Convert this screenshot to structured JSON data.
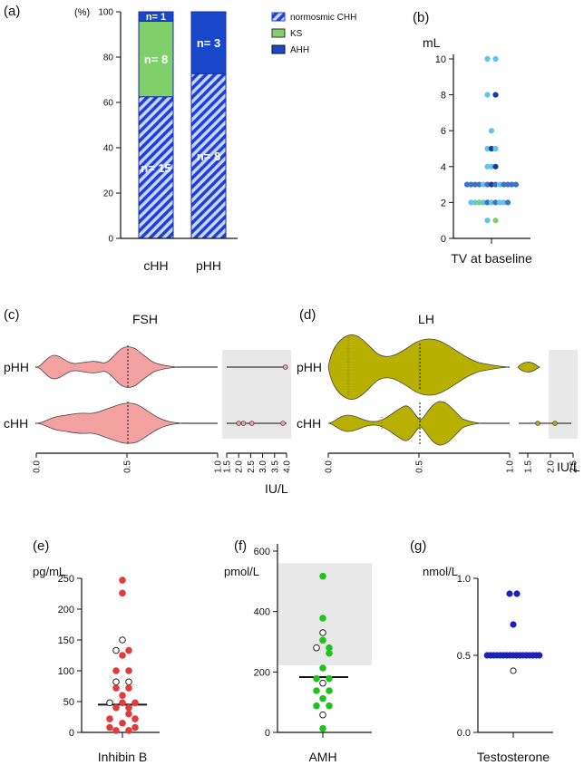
{
  "colors": {
    "normosmic": "#1f3fd6",
    "ks": "#7fd06a",
    "ahh": "#1947c9",
    "fsh": "#f4a1a1",
    "lh": "#b7b000",
    "shade": "#e8e8e8"
  },
  "panels": [
    {
      "label": "(a)"
    },
    {
      "label": "(b)"
    },
    {
      "label": "(c)"
    },
    {
      "label": "(d)"
    },
    {
      "label": "(e)"
    },
    {
      "label": "(f)"
    },
    {
      "label": "(g)"
    }
  ],
  "chart_data": [
    {
      "id": "a",
      "type": "bar",
      "stacked": true,
      "ylabel": "(%)",
      "ylim": [
        0,
        100
      ],
      "yticks": [
        0,
        20,
        40,
        60,
        80,
        100
      ],
      "categories": [
        "cHH",
        "pHH"
      ],
      "series": [
        {
          "name": "normosmic CHH",
          "values": [
            62.5,
            72.7
          ],
          "counts": [
            "n= 15",
            "n= 8"
          ]
        },
        {
          "name": "KS",
          "values": [
            33.3,
            0
          ],
          "counts": [
            "n= 8",
            ""
          ]
        },
        {
          "name": "AHH",
          "values": [
            4.2,
            27.3
          ],
          "counts": [
            "n= 1",
            "n= 3"
          ]
        }
      ],
      "legend": [
        "normosmic CHH",
        "KS",
        "AHH"
      ]
    },
    {
      "id": "b",
      "type": "scatter",
      "ylabel": "mL",
      "xlabel": "TV at baseline",
      "ylim": [
        0,
        10
      ],
      "yticks": [
        0,
        2,
        4,
        6,
        8,
        10
      ],
      "points": [
        {
          "y": 10,
          "dx": -1,
          "c": "#5ec5ec"
        },
        {
          "y": 10,
          "dx": 1,
          "c": "#5ec5ec"
        },
        {
          "y": 8,
          "dx": -1,
          "c": "#5ec5ec"
        },
        {
          "y": 8,
          "dx": 1,
          "c": "#1a3a9e"
        },
        {
          "y": 6,
          "dx": 0,
          "c": "#5ec5ec"
        },
        {
          "y": 5,
          "dx": -1,
          "c": "#5ec5ec"
        },
        {
          "y": 5,
          "dx": 0,
          "c": "#1a3a9e"
        },
        {
          "y": 5,
          "dx": 1,
          "c": "#5ec5ec"
        },
        {
          "y": 4,
          "dx": -1,
          "c": "#5ec5ec"
        },
        {
          "y": 4,
          "dx": 0,
          "c": "#5ec5ec"
        },
        {
          "y": 4,
          "dx": 1,
          "c": "#1a3a9e"
        },
        {
          "y": 3,
          "dx": -6,
          "c": "#3a73cc"
        },
        {
          "y": 3,
          "dx": -5,
          "c": "#3a73cc"
        },
        {
          "y": 3,
          "dx": -4,
          "c": "#3a73cc"
        },
        {
          "y": 3,
          "dx": -3,
          "c": "#3a73cc"
        },
        {
          "y": 3,
          "dx": -2,
          "c": "#5ec5ec"
        },
        {
          "y": 3,
          "dx": -1,
          "c": "#3a73cc"
        },
        {
          "y": 3,
          "dx": 0,
          "c": "#1a3a9e"
        },
        {
          "y": 3,
          "dx": 1,
          "c": "#3a73cc"
        },
        {
          "y": 3,
          "dx": 2,
          "c": "#5ec5ec"
        },
        {
          "y": 3,
          "dx": 3,
          "c": "#3a73cc"
        },
        {
          "y": 3,
          "dx": 4,
          "c": "#3a73cc"
        },
        {
          "y": 3,
          "dx": 5,
          "c": "#3a73cc"
        },
        {
          "y": 3,
          "dx": 6,
          "c": "#3a73cc"
        },
        {
          "y": 2,
          "dx": -5,
          "c": "#5ec5ec"
        },
        {
          "y": 2,
          "dx": -4,
          "c": "#5ec5ec"
        },
        {
          "y": 2,
          "dx": -3,
          "c": "#7fd06a"
        },
        {
          "y": 2,
          "dx": -2,
          "c": "#5ec5ec"
        },
        {
          "y": 2,
          "dx": -1,
          "c": "#3a73cc"
        },
        {
          "y": 2,
          "dx": 0,
          "c": "#5ec5ec"
        },
        {
          "y": 2,
          "dx": 1,
          "c": "#3a73cc"
        },
        {
          "y": 2,
          "dx": 2,
          "c": "#5ec5ec"
        },
        {
          "y": 2,
          "dx": 3,
          "c": "#5ec5ec"
        },
        {
          "y": 2,
          "dx": 4,
          "c": "#3a73cc"
        },
        {
          "y": 1,
          "dx": -1,
          "c": "#5ec5ec"
        },
        {
          "y": 1,
          "dx": 1,
          "c": "#7fd06a"
        }
      ]
    },
    {
      "id": "c",
      "type": "violin",
      "title": "FSH",
      "unit": "IU/L",
      "categories": [
        "pHH",
        "cHH"
      ],
      "main_range": [
        0,
        1
      ],
      "main_ticks": [
        "0.0",
        "0.5",
        "1.0"
      ],
      "main_tick_values": [
        0,
        0.5,
        1
      ],
      "break_range": [
        1.5,
        4
      ],
      "break_ticks": [
        "1.5",
        "2.0",
        "2.5",
        "3.0",
        "3.5",
        "4.0"
      ],
      "break_tick_values": [
        1.5,
        2,
        2.5,
        3,
        3.5,
        4
      ],
      "median": 0.5,
      "outliers": {
        "pHH": [
          3.95
        ],
        "cHH": [
          2.0,
          2.2,
          2.55,
          3.85
        ]
      }
    },
    {
      "id": "d",
      "type": "violin",
      "title": "LH",
      "unit": "IU/L",
      "categories": [
        "pHH",
        "cHH"
      ],
      "main_range": [
        0,
        1
      ],
      "main_ticks": [
        "0.0",
        "0.5",
        "1.0"
      ],
      "main_tick_values": [
        0,
        0.5,
        1
      ],
      "break_range": [
        1.3,
        2.5
      ],
      "break_ticks": [
        "1.5",
        "2.0",
        "2.5"
      ],
      "break_tick_values": [
        1.5,
        2,
        2.5
      ],
      "median": 0.5,
      "outliers": {
        "pHH": [],
        "cHH": [
          1.72,
          2.1
        ]
      }
    },
    {
      "id": "e",
      "type": "scatter",
      "ylabel": "pg/mL",
      "xlabel": "Inhibin B",
      "ylim": [
        0,
        250
      ],
      "yticks": [
        0,
        50,
        100,
        150,
        200,
        250
      ],
      "median": 45,
      "filled_color": "#e03c3c",
      "points": [
        {
          "y": 247,
          "dx": 0,
          "f": 1
        },
        {
          "y": 226,
          "dx": 0,
          "f": 1
        },
        {
          "y": 150,
          "dx": 0,
          "f": 0
        },
        {
          "y": 133,
          "dx": -1,
          "f": 0
        },
        {
          "y": 133,
          "dx": 1,
          "f": 1
        },
        {
          "y": 125,
          "dx": 0,
          "f": 1
        },
        {
          "y": 100,
          "dx": -1,
          "f": 1
        },
        {
          "y": 100,
          "dx": 1,
          "f": 1
        },
        {
          "y": 82,
          "dx": -1,
          "f": 0
        },
        {
          "y": 82,
          "dx": 1,
          "f": 0
        },
        {
          "y": 72,
          "dx": -1,
          "f": 1
        },
        {
          "y": 72,
          "dx": 1,
          "f": 1
        },
        {
          "y": 60,
          "dx": 0,
          "f": 1
        },
        {
          "y": 48,
          "dx": -2,
          "f": 0
        },
        {
          "y": 48,
          "dx": 0,
          "f": 1
        },
        {
          "y": 48,
          "dx": 2,
          "f": 1
        },
        {
          "y": 40,
          "dx": -1,
          "f": 1
        },
        {
          "y": 40,
          "dx": 1,
          "f": 1
        },
        {
          "y": 30,
          "dx": 1,
          "f": 1
        },
        {
          "y": 22,
          "dx": -2,
          "f": 1
        },
        {
          "y": 22,
          "dx": 2,
          "f": 1
        },
        {
          "y": 15,
          "dx": 0,
          "f": 1
        },
        {
          "y": 8,
          "dx": -2,
          "f": 1
        },
        {
          "y": 8,
          "dx": 2,
          "f": 1
        },
        {
          "y": 3,
          "dx": -1,
          "f": 1
        },
        {
          "y": 3,
          "dx": 1,
          "f": 1
        }
      ]
    },
    {
      "id": "f",
      "type": "scatter",
      "ylabel": "pmol/L",
      "xlabel": "AMH",
      "ylim": [
        0,
        600
      ],
      "yticks": [
        0,
        200,
        400,
        600
      ],
      "median": 183,
      "reference_range": [
        222,
        560
      ],
      "filled_color": "#1ec31e",
      "points": [
        {
          "y": 517,
          "dx": 0,
          "f": 1
        },
        {
          "y": 378,
          "dx": 0,
          "f": 1
        },
        {
          "y": 330,
          "dx": 0,
          "f": 0
        },
        {
          "y": 305,
          "dx": 0,
          "f": 1
        },
        {
          "y": 280,
          "dx": -1,
          "f": 0
        },
        {
          "y": 280,
          "dx": 1,
          "f": 1
        },
        {
          "y": 262,
          "dx": 1,
          "f": 1
        },
        {
          "y": 213,
          "dx": 0,
          "f": 1
        },
        {
          "y": 178,
          "dx": -1,
          "f": 1
        },
        {
          "y": 178,
          "dx": 1,
          "f": 1
        },
        {
          "y": 163,
          "dx": 0,
          "f": 0
        },
        {
          "y": 138,
          "dx": -1,
          "f": 1
        },
        {
          "y": 138,
          "dx": 1,
          "f": 1
        },
        {
          "y": 112,
          "dx": 0,
          "f": 1
        },
        {
          "y": 88,
          "dx": -1,
          "f": 1
        },
        {
          "y": 88,
          "dx": 1,
          "f": 1
        },
        {
          "y": 58,
          "dx": 0,
          "f": 0
        },
        {
          "y": 13,
          "dx": 0,
          "f": 1
        }
      ]
    },
    {
      "id": "g",
      "type": "scatter",
      "ylabel": "nmol/L",
      "xlabel": "Testosterone",
      "ylim": [
        0,
        1
      ],
      "yticks": [
        "0.0",
        "0.5",
        "1.0"
      ],
      "ytick_values": [
        0,
        0.5,
        1
      ],
      "median": 0.5,
      "filled_color": "#1c22b5",
      "points": [
        {
          "y": 0.9,
          "dx": -1,
          "f": 1
        },
        {
          "y": 0.9,
          "dx": 1,
          "f": 1
        },
        {
          "y": 0.7,
          "dx": 0,
          "f": 1
        },
        {
          "y": 0.4,
          "dx": 0,
          "f": 0
        }
      ],
      "row_at_median": 17
    }
  ]
}
